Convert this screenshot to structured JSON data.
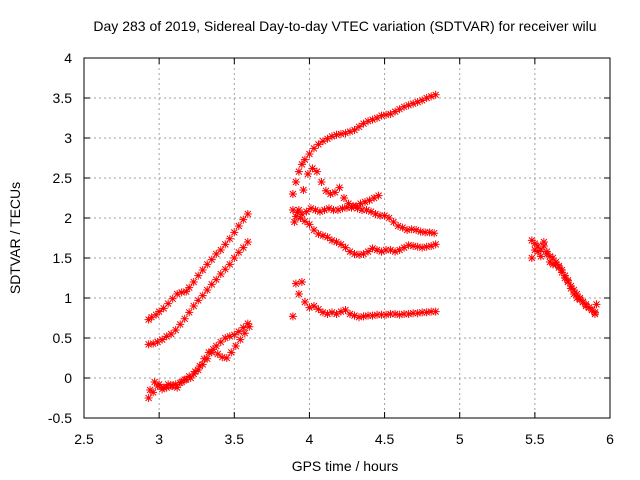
{
  "chart_data": {
    "type": "scatter",
    "title": "Day 283 of 2019, Sidereal Day-to-day VTEC variation (SDTVAR) for receiver wilu",
    "xlabel": "GPS time / hours",
    "ylabel": "SDTVAR / TECUs",
    "xlim": [
      2.5,
      6
    ],
    "ylim": [
      -0.5,
      4
    ],
    "xticks": [
      2.5,
      3,
      3.5,
      4,
      4.5,
      5,
      5.5,
      6
    ],
    "yticks": [
      -0.5,
      0,
      0.5,
      1,
      1.5,
      2,
      2.5,
      3,
      3.5,
      4
    ],
    "xtick_labels": [
      "2.5",
      "3",
      "3.5",
      "4",
      "4.5",
      "5",
      "5.5",
      "6"
    ],
    "ytick_labels": [
      "-0.5",
      "0",
      "0.5",
      "1",
      "1.5",
      "2",
      "2.5",
      "3",
      "3.5",
      "4"
    ],
    "grid": true,
    "marker": "plus-cross",
    "marker_color": "#ff0000",
    "series": [
      {
        "x": [
          2.93,
          2.95,
          2.98,
          3.0,
          3.03,
          3.06,
          3.09,
          3.12,
          3.15,
          3.18,
          3.2,
          3.23,
          3.26,
          3.29,
          3.32,
          3.35,
          3.38,
          3.41,
          3.44,
          3.47,
          3.5,
          3.53,
          3.56,
          3.59
        ],
        "y": [
          0.73,
          0.76,
          0.79,
          0.83,
          0.87,
          0.93,
          0.99,
          1.05,
          1.07,
          1.08,
          1.13,
          1.2,
          1.28,
          1.35,
          1.42,
          1.48,
          1.55,
          1.6,
          1.67,
          1.74,
          1.82,
          1.9,
          1.98,
          2.05
        ]
      },
      {
        "x": [
          2.93,
          2.96,
          2.99,
          3.02,
          3.05,
          3.08,
          3.11,
          3.14,
          3.17,
          3.2,
          3.23,
          3.26,
          3.29,
          3.32,
          3.35,
          3.38,
          3.41,
          3.44,
          3.47,
          3.5,
          3.53,
          3.56,
          3.59
        ],
        "y": [
          0.42,
          0.43,
          0.45,
          0.48,
          0.52,
          0.55,
          0.6,
          0.67,
          0.74,
          0.82,
          0.9,
          0.97,
          1.03,
          1.1,
          1.17,
          1.23,
          1.3,
          1.36,
          1.42,
          1.5,
          1.57,
          1.63,
          1.7
        ]
      },
      {
        "x": [
          2.93,
          2.96,
          2.99,
          3.02,
          3.05,
          3.08,
          3.11,
          3.14,
          3.17,
          3.2,
          3.23,
          3.26,
          3.29,
          3.32,
          3.35,
          3.38,
          3.41,
          3.44,
          3.47,
          3.5,
          3.53,
          3.56,
          3.59
        ],
        "y": [
          -0.25,
          -0.18,
          -0.1,
          -0.14,
          -0.12,
          -0.1,
          -0.08,
          -0.06,
          -0.02,
          0.02,
          0.05,
          0.1,
          0.17,
          0.24,
          0.32,
          0.4,
          0.45,
          0.5,
          0.52,
          0.54,
          0.58,
          0.63,
          0.68
        ]
      },
      {
        "x": [
          2.94,
          2.97,
          3.0,
          3.03,
          3.06,
          3.09,
          3.12,
          3.15,
          3.18,
          3.21,
          3.24,
          3.27,
          3.3,
          3.33,
          3.36,
          3.39,
          3.42,
          3.45,
          3.48,
          3.51,
          3.54,
          3.57,
          3.6
        ],
        "y": [
          -0.15,
          -0.05,
          -0.08,
          -0.12,
          -0.08,
          -0.1,
          -0.12,
          -0.05,
          -0.02,
          0.0,
          0.08,
          0.15,
          0.24,
          0.32,
          0.36,
          0.3,
          0.26,
          0.25,
          0.32,
          0.4,
          0.48,
          0.56,
          0.64
        ]
      },
      {
        "x": [
          3.89,
          3.91,
          3.93,
          3.95,
          3.97,
          4.0,
          4.03,
          4.06,
          4.09,
          4.12,
          4.15,
          4.18,
          4.21,
          4.24,
          4.27,
          4.3,
          4.33,
          4.36,
          4.39,
          4.42,
          4.45,
          4.48,
          4.51,
          4.54,
          4.57,
          4.6,
          4.63,
          4.66,
          4.69,
          4.72,
          4.75,
          4.78,
          4.81,
          4.84
        ],
        "y": [
          2.3,
          2.45,
          2.58,
          2.67,
          2.73,
          2.8,
          2.87,
          2.92,
          2.96,
          2.99,
          3.02,
          3.04,
          3.05,
          3.06,
          3.08,
          3.1,
          3.14,
          3.18,
          3.21,
          3.23,
          3.25,
          3.28,
          3.29,
          3.3,
          3.33,
          3.36,
          3.39,
          3.41,
          3.43,
          3.45,
          3.47,
          3.5,
          3.52,
          3.54
        ]
      },
      {
        "x": [
          3.9,
          3.93,
          3.96,
          3.99,
          4.02,
          4.05,
          4.08,
          4.11,
          4.14,
          4.17,
          4.2,
          4.23,
          4.26,
          4.29,
          4.32,
          4.35,
          4.38,
          4.41,
          4.44,
          4.47,
          4.5,
          4.53,
          4.56,
          4.59,
          4.62,
          4.65,
          4.68,
          4.71,
          4.74,
          4.77,
          4.8,
          4.83
        ],
        "y": [
          1.95,
          2.1,
          2.35,
          2.55,
          2.62,
          2.58,
          2.45,
          2.34,
          2.3,
          2.32,
          2.38,
          2.25,
          2.18,
          2.15,
          2.12,
          2.1,
          2.1,
          2.08,
          2.05,
          2.03,
          2.03,
          2.0,
          1.95,
          1.9,
          1.88,
          1.85,
          1.86,
          1.85,
          1.83,
          1.82,
          1.82,
          1.81
        ]
      },
      {
        "x": [
          3.89,
          3.92,
          3.95,
          3.98,
          4.01,
          4.04,
          4.07,
          4.1,
          4.13,
          4.16,
          4.19,
          4.22,
          4.25,
          4.28,
          4.31,
          4.34,
          4.37,
          4.4,
          4.43,
          4.46
        ],
        "y": [
          2.1,
          2.07,
          2.05,
          2.08,
          2.12,
          2.1,
          2.08,
          2.1,
          2.12,
          2.1,
          2.1,
          2.12,
          2.13,
          2.13,
          2.15,
          2.18,
          2.2,
          2.22,
          2.25,
          2.28
        ]
      },
      {
        "x": [
          3.91,
          3.94,
          3.97,
          4.0,
          4.03,
          4.06,
          4.09,
          4.12,
          4.15,
          4.18,
          4.21,
          4.24,
          4.27,
          4.3,
          4.33,
          4.36,
          4.39,
          4.42,
          4.45,
          4.48,
          4.51,
          4.54,
          4.57,
          4.6,
          4.63,
          4.66,
          4.69,
          4.72,
          4.75,
          4.78,
          4.81,
          4.84
        ],
        "y": [
          2.02,
          2.0,
          1.96,
          1.92,
          1.85,
          1.8,
          1.78,
          1.76,
          1.72,
          1.7,
          1.67,
          1.63,
          1.58,
          1.55,
          1.54,
          1.55,
          1.58,
          1.62,
          1.6,
          1.58,
          1.6,
          1.6,
          1.58,
          1.6,
          1.63,
          1.66,
          1.65,
          1.64,
          1.63,
          1.64,
          1.65,
          1.67
        ]
      },
      {
        "x": [
          3.89,
          3.91,
          3.93,
          3.95,
          3.97,
          4.0,
          4.03,
          4.06,
          4.09,
          4.12,
          4.15,
          4.18,
          4.21,
          4.24,
          4.27,
          4.3,
          4.33,
          4.36,
          4.39,
          4.42,
          4.45,
          4.48,
          4.51,
          4.54,
          4.57,
          4.6,
          4.63,
          4.66,
          4.69,
          4.72,
          4.75,
          4.78,
          4.81,
          4.84
        ],
        "y": [
          0.77,
          1.18,
          1.05,
          1.2,
          0.95,
          0.88,
          0.9,
          0.86,
          0.82,
          0.8,
          0.82,
          0.8,
          0.83,
          0.85,
          0.8,
          0.78,
          0.76,
          0.77,
          0.78,
          0.78,
          0.79,
          0.79,
          0.79,
          0.8,
          0.8,
          0.79,
          0.8,
          0.8,
          0.81,
          0.81,
          0.82,
          0.82,
          0.83,
          0.83
        ]
      },
      {
        "x": [
          5.48,
          5.5,
          5.52,
          5.54,
          5.56,
          5.58,
          5.6,
          5.62,
          5.64,
          5.66,
          5.68,
          5.7,
          5.72,
          5.74,
          5.76,
          5.78,
          5.8,
          5.82,
          5.84,
          5.86,
          5.88,
          5.9
        ],
        "y": [
          1.72,
          1.68,
          1.65,
          1.6,
          1.65,
          1.58,
          1.52,
          1.5,
          1.45,
          1.4,
          1.35,
          1.28,
          1.22,
          1.15,
          1.1,
          1.05,
          1.0,
          0.95,
          0.9,
          0.88,
          0.85,
          0.82
        ]
      },
      {
        "x": [
          5.48,
          5.5,
          5.52,
          5.54,
          5.56,
          5.58,
          5.6,
          5.62,
          5.64,
          5.66,
          5.68,
          5.7,
          5.72,
          5.74,
          5.76,
          5.78,
          5.8,
          5.82,
          5.84,
          5.86,
          5.88,
          5.9,
          5.91
        ],
        "y": [
          1.5,
          1.6,
          1.58,
          1.52,
          1.7,
          1.55,
          1.45,
          1.42,
          1.42,
          1.38,
          1.32,
          1.25,
          1.2,
          1.12,
          1.05,
          1.0,
          0.98,
          0.95,
          0.92,
          0.88,
          0.85,
          0.8,
          0.92
        ]
      }
    ]
  }
}
